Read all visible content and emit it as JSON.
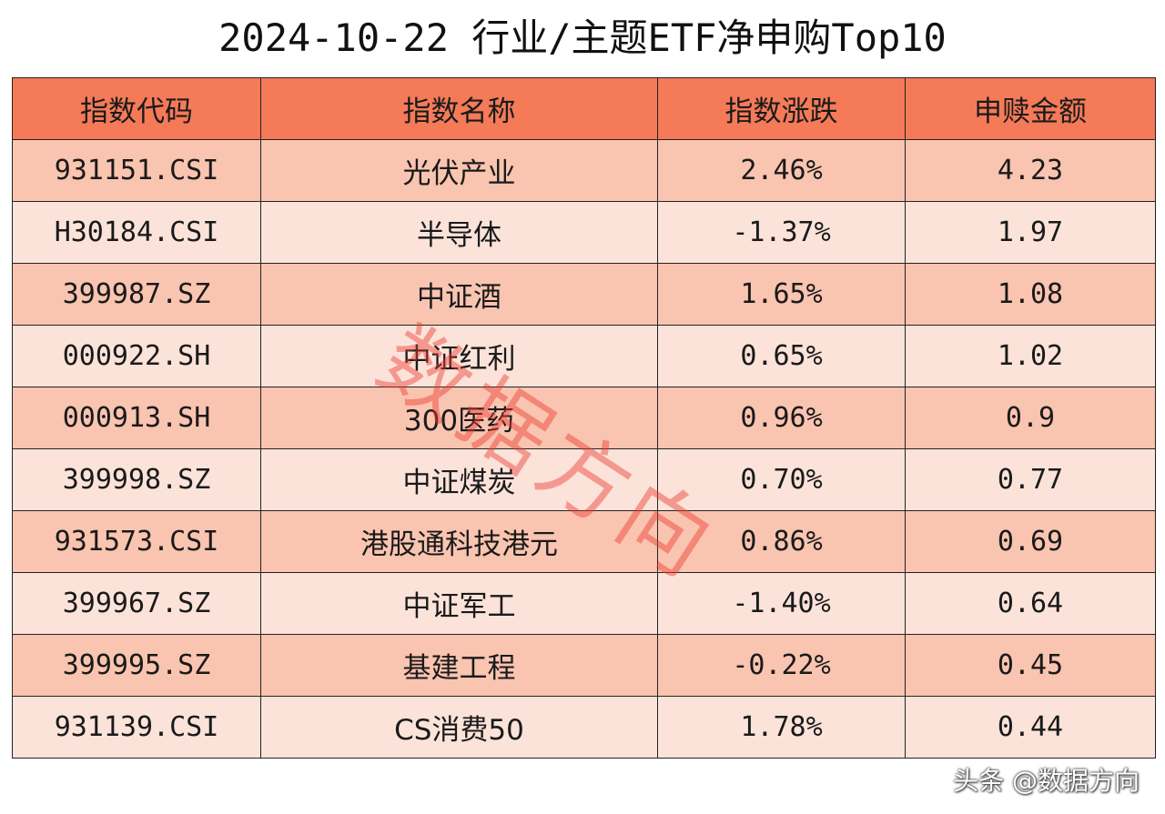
{
  "title": "2024-10-22 行业/主题ETF净申购Top10",
  "colors": {
    "header_bg": "#f47a58",
    "row_odd_bg": "#f9c4b0",
    "row_even_bg": "#fbe3da",
    "watermark": "#eb3c32"
  },
  "table": {
    "headers": [
      "指数代码",
      "指数名称",
      "指数涨跌",
      "申赎金额"
    ],
    "rows": [
      {
        "code": "931151.CSI",
        "name": "光伏产业",
        "change": "2.46%",
        "amount": "4.23"
      },
      {
        "code": "H30184.CSI",
        "name": "半导体",
        "change": "-1.37%",
        "amount": "1.97"
      },
      {
        "code": "399987.SZ",
        "name": "中证酒",
        "change": "1.65%",
        "amount": "1.08"
      },
      {
        "code": "000922.SH",
        "name": "中证红利",
        "change": "0.65%",
        "amount": "1.02"
      },
      {
        "code": "000913.SH",
        "name": "300医药",
        "change": "0.96%",
        "amount": "0.9"
      },
      {
        "code": "399998.SZ",
        "name": "中证煤炭",
        "change": "0.70%",
        "amount": "0.77"
      },
      {
        "code": "931573.CSI",
        "name": "港股通科技港元",
        "change": "0.86%",
        "amount": "0.69"
      },
      {
        "code": "399967.SZ",
        "name": "中证军工",
        "change": "-1.40%",
        "amount": "0.64"
      },
      {
        "code": "399995.SZ",
        "name": "基建工程",
        "change": "-0.22%",
        "amount": "0.45"
      },
      {
        "code": "931139.CSI",
        "name": "CS消费50",
        "change": "1.78%",
        "amount": "0.44"
      }
    ]
  },
  "watermark_text": "数据方向",
  "credit": "头条 @数据方向"
}
